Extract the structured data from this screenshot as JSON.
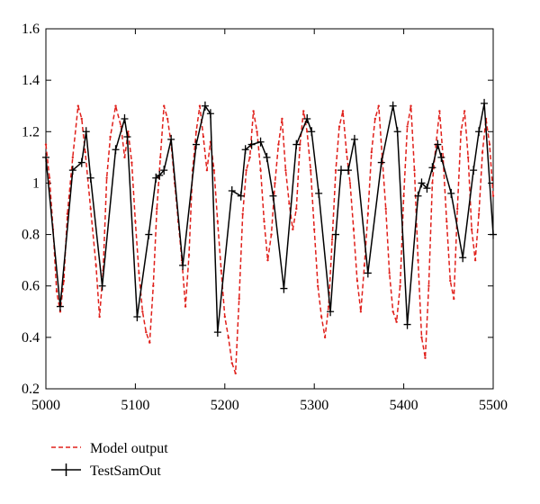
{
  "chart_data": {
    "type": "line",
    "title": "",
    "xlabel": "",
    "ylabel": "",
    "xlim": [
      5000,
      5500
    ],
    "ylim": [
      0.2,
      1.6
    ],
    "x_ticks": [
      5000,
      5100,
      5200,
      5300,
      5400,
      5500
    ],
    "y_ticks": [
      0.2,
      0.4,
      0.6,
      0.8,
      1,
      1.2,
      1.4,
      1.6
    ],
    "x_tick_labels": [
      "5000",
      "5100",
      "5200",
      "5300",
      "5400",
      "5500"
    ],
    "y_tick_labels": [
      "0.2",
      "0.4",
      "0.6",
      "0.8",
      "1",
      "1.2",
      "1.4",
      "1.6"
    ],
    "grid": false,
    "legend_position": "bottom-left, below plot",
    "series": [
      {
        "name": "Model output",
        "color": "#e0201b",
        "style": "dashed",
        "x": [
          5000,
          5004,
          5008,
          5012,
          5016,
          5020,
          5024,
          5030,
          5036,
          5040,
          5044,
          5050,
          5056,
          5060,
          5064,
          5068,
          5072,
          5078,
          5084,
          5088,
          5092,
          5096,
          5100,
          5104,
          5108,
          5112,
          5116,
          5120,
          5124,
          5128,
          5132,
          5136,
          5140,
          5144,
          5148,
          5152,
          5156,
          5160,
          5164,
          5168,
          5172,
          5176,
          5180,
          5184,
          5188,
          5192,
          5196,
          5200,
          5204,
          5208,
          5212,
          5216,
          5220,
          5224,
          5228,
          5232,
          5236,
          5240,
          5244,
          5248,
          5252,
          5256,
          5260,
          5264,
          5268,
          5272,
          5276,
          5280,
          5284,
          5288,
          5292,
          5296,
          5300,
          5304,
          5308,
          5312,
          5316,
          5320,
          5324,
          5328,
          5332,
          5336,
          5340,
          5344,
          5348,
          5352,
          5356,
          5360,
          5364,
          5368,
          5372,
          5376,
          5380,
          5384,
          5388,
          5392,
          5396,
          5400,
          5404,
          5408,
          5412,
          5416,
          5420,
          5424,
          5428,
          5432,
          5436,
          5440,
          5444,
          5448,
          5452,
          5456,
          5460,
          5464,
          5468,
          5472,
          5476,
          5480,
          5484,
          5488,
          5492,
          5496,
          5500
        ],
        "y": [
          1.15,
          1.02,
          0.82,
          0.58,
          0.5,
          0.62,
          0.88,
          1.1,
          1.3,
          1.25,
          1.12,
          0.9,
          0.68,
          0.48,
          0.66,
          1.02,
          1.18,
          1.3,
          1.22,
          1.1,
          1.2,
          1.08,
          0.85,
          0.65,
          0.5,
          0.42,
          0.38,
          0.6,
          0.9,
          1.1,
          1.3,
          1.25,
          1.15,
          1.0,
          0.85,
          0.7,
          0.52,
          0.72,
          1.05,
          1.2,
          1.3,
          1.18,
          1.05,
          1.16,
          1.05,
          0.85,
          0.66,
          0.48,
          0.4,
          0.3,
          0.26,
          0.55,
          0.88,
          1.05,
          1.1,
          1.28,
          1.2,
          1.05,
          0.85,
          0.7,
          0.8,
          1.0,
          1.15,
          1.25,
          1.05,
          0.92,
          0.82,
          0.9,
          1.15,
          1.28,
          1.2,
          1.05,
          0.82,
          0.6,
          0.48,
          0.4,
          0.52,
          0.78,
          1.05,
          1.22,
          1.28,
          1.12,
          1.0,
          0.82,
          0.62,
          0.5,
          0.68,
          0.88,
          1.12,
          1.25,
          1.3,
          1.1,
          0.9,
          0.65,
          0.5,
          0.46,
          0.6,
          0.95,
          1.22,
          1.3,
          1.05,
          0.7,
          0.4,
          0.32,
          0.6,
          1.0,
          1.15,
          1.28,
          1.1,
          0.85,
          0.62,
          0.55,
          0.9,
          1.2,
          1.28,
          1.1,
          0.82,
          0.7,
          0.88,
          1.12,
          1.25,
          1.15,
          0.95
        ]
      },
      {
        "name": "TestSamOut",
        "color": "#000000",
        "style": "solid-with-plus-markers",
        "x": [
          5000,
          5016,
          5030,
          5040,
          5045,
          5050,
          5063,
          5078,
          5088,
          5091,
          5102,
          5115,
          5123,
          5127,
          5132,
          5140,
          5153,
          5168,
          5178,
          5184,
          5192,
          5208,
          5218,
          5223,
          5230,
          5240,
          5247,
          5254,
          5266,
          5280,
          5292,
          5297,
          5305,
          5318,
          5324,
          5330,
          5338,
          5345,
          5360,
          5375,
          5388,
          5393,
          5404,
          5416,
          5420,
          5426,
          5432,
          5438,
          5442,
          5453,
          5466,
          5478,
          5484,
          5490,
          5500
        ],
        "y": [
          1.1,
          0.52,
          1.05,
          1.08,
          1.2,
          1.02,
          0.6,
          1.13,
          1.25,
          1.18,
          0.48,
          0.8,
          1.02,
          1.03,
          1.05,
          1.17,
          0.68,
          1.15,
          1.3,
          1.27,
          0.42,
          0.97,
          0.95,
          1.13,
          1.15,
          1.16,
          1.1,
          0.95,
          0.59,
          1.15,
          1.25,
          1.2,
          0.96,
          0.5,
          0.8,
          1.05,
          1.05,
          1.17,
          0.65,
          1.08,
          1.3,
          1.2,
          0.45,
          0.95,
          1.0,
          0.98,
          1.06,
          1.15,
          1.1,
          0.96,
          0.71,
          1.05,
          1.2,
          1.31,
          0.8
        ]
      }
    ]
  }
}
